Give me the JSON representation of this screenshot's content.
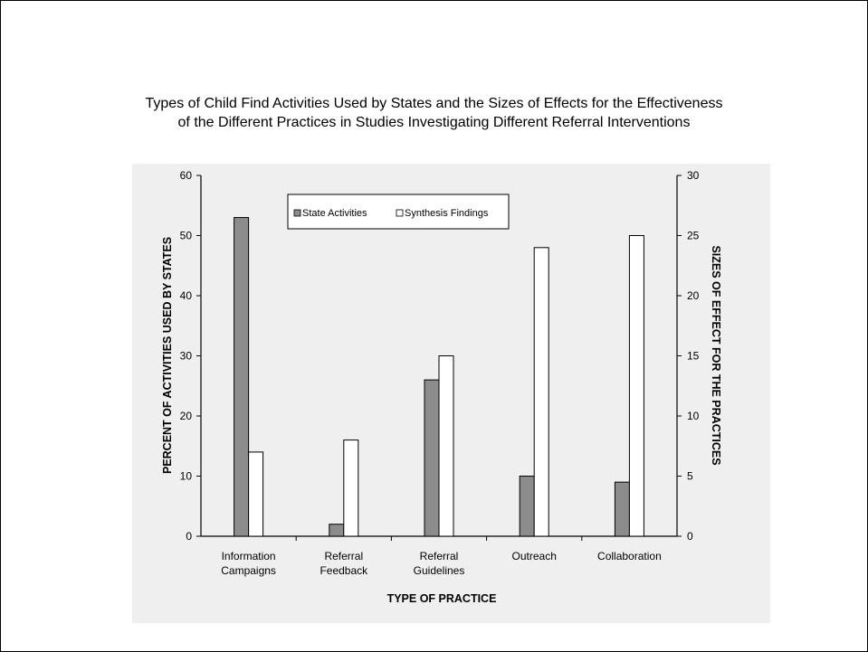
{
  "chart_data": {
    "type": "bar",
    "title_line1": "Types of Child Find Activities Used by States and the Sizes of Effects for the Effectiveness",
    "title_line2": "of the Different Practices in Studies Investigating Different Referral Interventions",
    "xlabel": "TYPE OF PRACTICE",
    "ylabel_left": "PERCENT OF ACTIVITIES USED BY STATES",
    "ylabel_right": "SIZES OF EFFECT FOR THE PRACTICES",
    "categories": [
      [
        "Information",
        "Campaigns"
      ],
      [
        "Referral",
        "Feedback"
      ],
      [
        "Referral",
        "Guidelines"
      ],
      [
        "Outreach"
      ],
      [
        "Collaboration"
      ]
    ],
    "ylim_left": [
      0,
      60
    ],
    "yticks_left": [
      "0",
      "10",
      "20",
      "30",
      "40",
      "50",
      "60"
    ],
    "ylim_right": [
      0,
      30
    ],
    "yticks_right": [
      "0",
      "5",
      "10",
      "15",
      "20",
      "25",
      "30"
    ],
    "series": [
      {
        "name": "State Activities",
        "axis": "left",
        "color": "#8c8c8c",
        "values": [
          53,
          2,
          26,
          10,
          9
        ]
      },
      {
        "name": "Synthesis Findings",
        "axis": "right",
        "color": "#ffffff",
        "values": [
          7,
          8,
          15,
          24,
          25
        ]
      }
    ],
    "legend_position": "top-center",
    "grid": false
  }
}
